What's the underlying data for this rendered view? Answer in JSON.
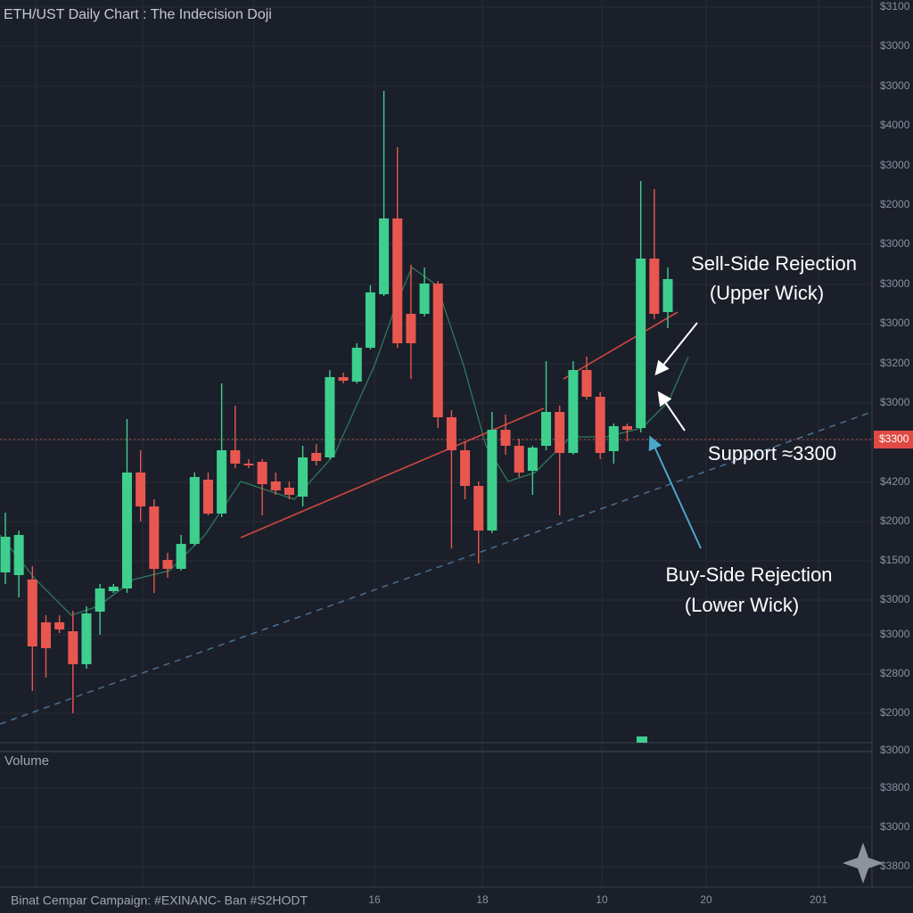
{
  "chart_data": {
    "type": "candlestick",
    "title": "ETH/UST Daily Chart : The Indecision Doji",
    "up_color": "#3ecf8e",
    "down_color": "#e8574f",
    "ylim": [
      2960,
      3793
    ],
    "open": [
      3151,
      3148,
      3143,
      3095,
      3095,
      3085,
      3048,
      3107,
      3130,
      3133,
      3263,
      3225,
      3165,
      3155,
      3183,
      3255,
      3217,
      3288,
      3273,
      3275,
      3253,
      3246,
      3236,
      3285,
      3280,
      3370,
      3365,
      3403,
      3463,
      3548,
      3441,
      3441,
      3475,
      3325,
      3288,
      3248,
      3198,
      3311,
      3293,
      3265,
      3293,
      3331,
      3285,
      3378,
      3348,
      3287,
      3315,
      3313,
      3503,
      3443
    ],
    "high": [
      3218,
      3198,
      3158,
      3103,
      3103,
      3108,
      3113,
      3138,
      3138,
      3323,
      3288,
      3233,
      3173,
      3193,
      3263,
      3263,
      3363,
      3338,
      3278,
      3278,
      3263,
      3253,
      3293,
      3295,
      3378,
      3375,
      3408,
      3473,
      3691,
      3628,
      3496,
      3493,
      3478,
      3333,
      3298,
      3253,
      3331,
      3328,
      3301,
      3293,
      3388,
      3338,
      3388,
      3393,
      3353,
      3318,
      3318,
      3590,
      3581,
      3493
    ],
    "low": [
      3138,
      3123,
      3018,
      3033,
      3083,
      2993,
      3043,
      3081,
      3128,
      3128,
      3208,
      3128,
      3145,
      3153,
      3181,
      3215,
      3213,
      3268,
      3268,
      3215,
      3238,
      3233,
      3225,
      3271,
      3278,
      3363,
      3363,
      3401,
      3461,
      3403,
      3368,
      3438,
      3313,
      3178,
      3233,
      3161,
      3195,
      3283,
      3258,
      3238,
      3288,
      3215,
      3283,
      3345,
      3278,
      3273,
      3298,
      3308,
      3435,
      3425
    ],
    "close": [
      3191,
      3193,
      3068,
      3066,
      3087,
      3048,
      3105,
      3133,
      3135,
      3263,
      3225,
      3155,
      3155,
      3183,
      3258,
      3217,
      3288,
      3273,
      3271,
      3250,
      3243,
      3238,
      3280,
      3276,
      3370,
      3366,
      3403,
      3465,
      3548,
      3408,
      3408,
      3475,
      3325,
      3288,
      3248,
      3198,
      3311,
      3293,
      3263,
      3291,
      3331,
      3285,
      3378,
      3348,
      3285,
      3315,
      3311,
      3503,
      3441,
      3480
    ],
    "support": {
      "value": 3300,
      "label": "$3300"
    },
    "price_axis_labels": [
      "$3100",
      "$3000",
      "$3000",
      "$4000",
      "$3000",
      "$2000",
      "$3000",
      "$3000",
      "$3000",
      "$3200",
      "$3000",
      "$3300",
      "$4200",
      "$2000",
      "$1500",
      "$3000",
      "$3000",
      "$2800",
      "$2000"
    ],
    "volume_axis_labels": [
      "$3000",
      "$3800",
      "$3000",
      "$3800"
    ],
    "xtick_labels": [
      "16",
      "18",
      "10",
      "20",
      "201"
    ],
    "volume_label": "Volume",
    "footer": "Binat Cempar Campaign: #EXINANC- Ban #S2HODT",
    "annotations": [
      "Sell-Side Rejection",
      "(Upper Wick)",
      "Support ≈3300",
      "Buy-Side Rejection",
      "(Lower Wick)"
    ]
  }
}
